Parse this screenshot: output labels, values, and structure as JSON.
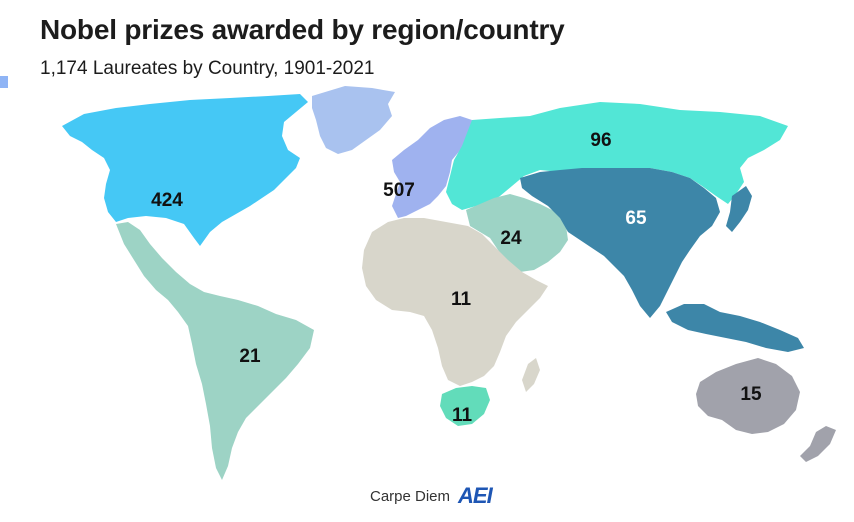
{
  "title": "Nobel prizes awarded by region/country",
  "subtitle": "1,174 Laureates by Country, 1901-2021",
  "footer": {
    "source": "Carpe Diem",
    "logo_text": "AEI"
  },
  "colors": {
    "north_america": "#45c8f5",
    "greenland": "#a9c2ef",
    "europe": "#9fb2ef",
    "russia": "#52e6d6",
    "middle_east": "#9dd3c5",
    "east_asia": "#3d86a8",
    "southeast_asia": "#3d86a8",
    "africa": "#d8d6cb",
    "south_africa": "#62dcba",
    "latin_america": "#9dd3c5",
    "oceania": "#a1a2ab",
    "label_dark": "#111111",
    "label_light": "#ffffff"
  },
  "regions": {
    "north_america": {
      "count": "424"
    },
    "europe": {
      "count": "507"
    },
    "russia": {
      "count": "96"
    },
    "middle_east": {
      "count": "24"
    },
    "east_asia": {
      "count": "65"
    },
    "africa": {
      "count": "11"
    },
    "south_africa": {
      "count": "11"
    },
    "latin_america": {
      "count": "21"
    },
    "oceania": {
      "count": "15"
    }
  }
}
